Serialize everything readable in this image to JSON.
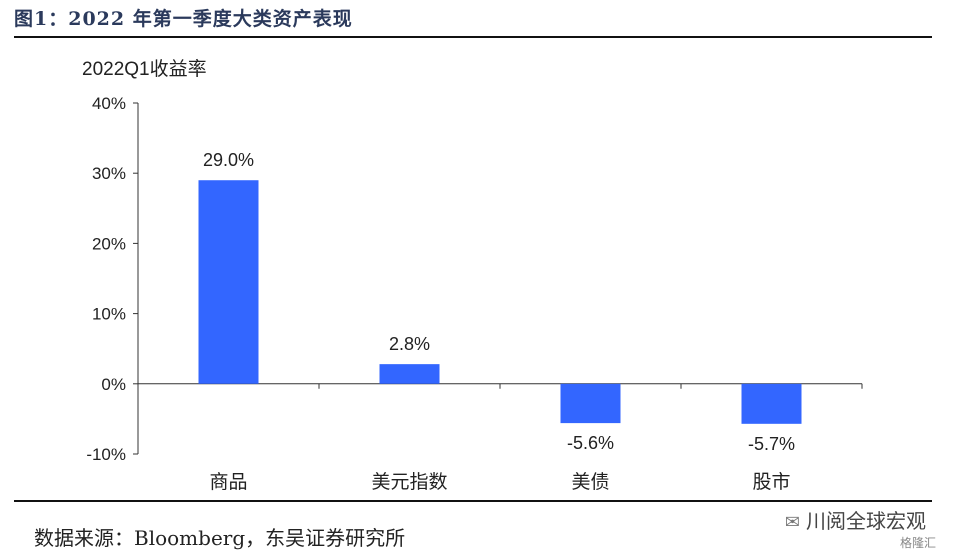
{
  "figure": {
    "title": "图1：2022 年第一季度大类资产表现",
    "source": "数据来源：Bloomberg，东吴证券研究所",
    "watermark": "川阅全球宏观",
    "watermark_small": "格隆汇"
  },
  "chart_data": {
    "type": "bar",
    "title": "2022Q1收益率",
    "xlabel": "",
    "ylabel": "",
    "categories": [
      "商品",
      "美元指数",
      "美债",
      "股市"
    ],
    "values": [
      29.0,
      2.8,
      -5.6,
      -5.7
    ],
    "data_labels": [
      "29.0%",
      "2.8%",
      "-5.6%",
      "-5.7%"
    ],
    "ylim": [
      -10,
      40
    ],
    "yticks": [
      -10,
      0,
      10,
      20,
      30,
      40
    ],
    "ytick_labels": [
      "-10%",
      "0%",
      "10%",
      "20%",
      "30%",
      "40%"
    ],
    "bar_color": "#3366ff",
    "grid": false,
    "legend": "none"
  }
}
